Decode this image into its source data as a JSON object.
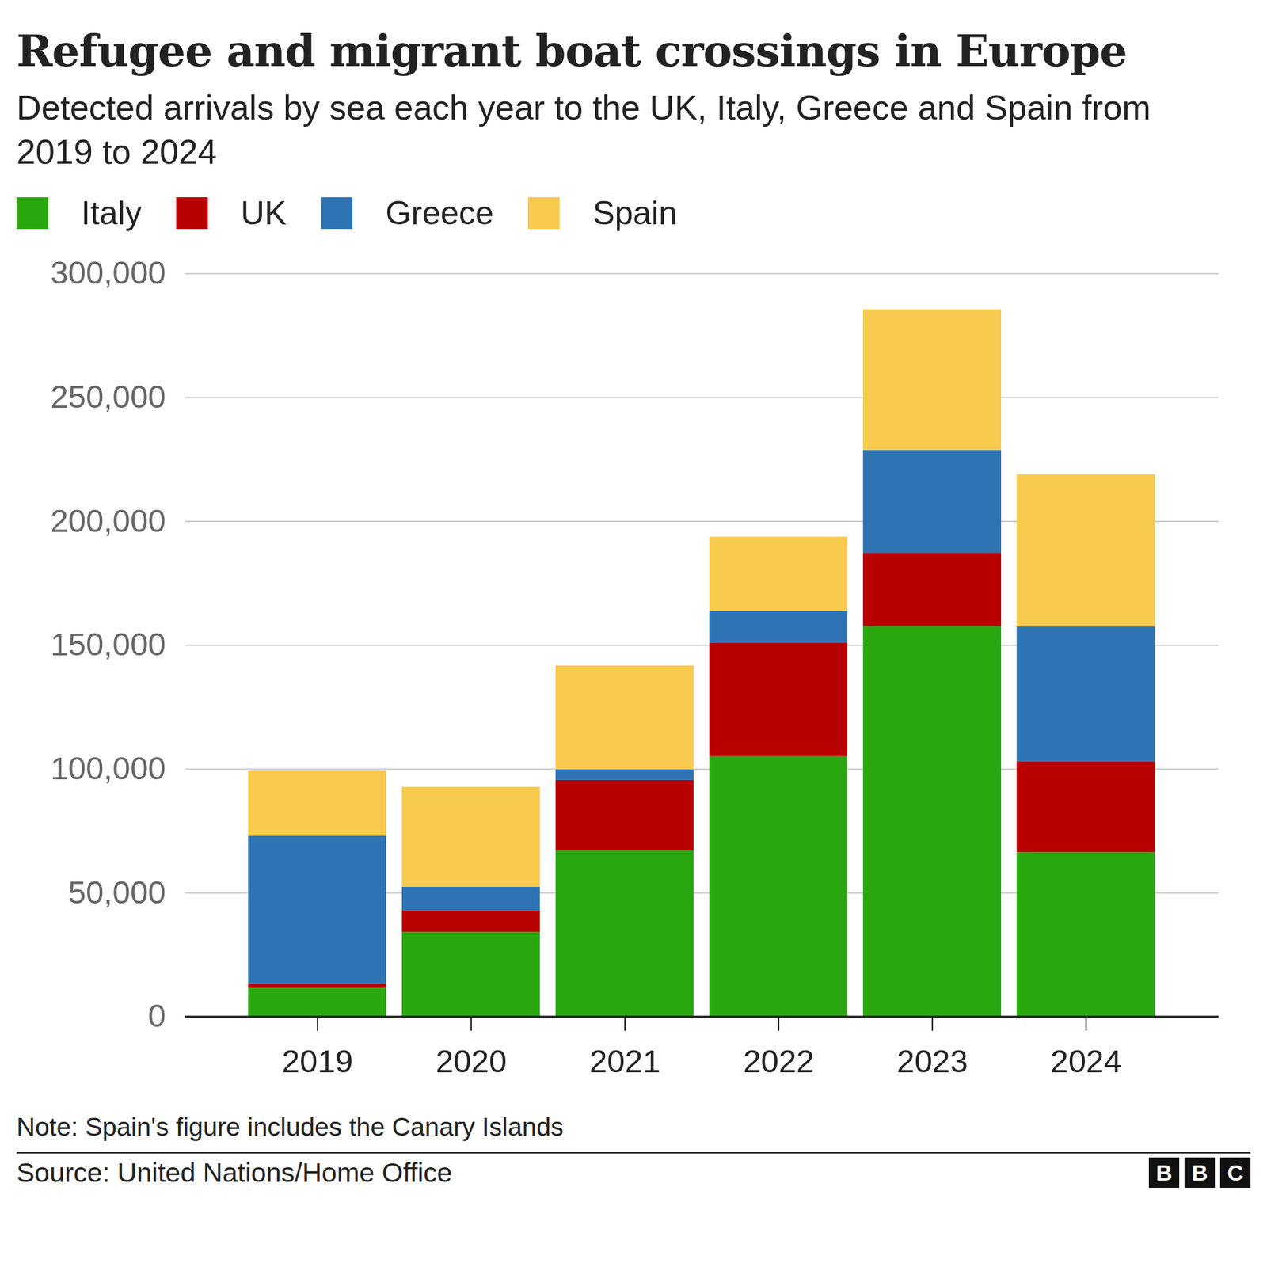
{
  "chart_data": {
    "type": "bar",
    "title": "Refugee and migrant boat crossings in Europe",
    "subtitle": "Detected arrivals by sea each year to the UK, Italy, Greece and Spain from 2019 to 2024",
    "categories": [
      "2019",
      "2020",
      "2021",
      "2022",
      "2023",
      "2024"
    ],
    "series": [
      {
        "name": "Italy",
        "color": "#29a90f",
        "values": [
          11500,
          34200,
          67000,
          105100,
          157700,
          66300
        ]
      },
      {
        "name": "UK",
        "color": "#b80000",
        "values": [
          1800,
          8500,
          28500,
          45800,
          29400,
          36800
        ]
      },
      {
        "name": "Greece",
        "color": "#2e74b5",
        "values": [
          59700,
          9700,
          4300,
          12800,
          41600,
          54400
        ]
      },
      {
        "name": "Spain",
        "color": "#f8ca4d",
        "values": [
          26200,
          40300,
          41900,
          30000,
          56800,
          61400
        ]
      }
    ],
    "stacked": true,
    "ylim": [
      0,
      300000
    ],
    "yticks": [
      0,
      {
        "value": 50000,
        "label": "50,000"
      },
      {
        "value": 100000,
        "label": "100,000"
      },
      {
        "value": 150000,
        "label": "150,000"
      },
      {
        "value": 200000,
        "label": "200,000"
      },
      {
        "value": 250000,
        "label": "250,000"
      },
      {
        "value": 300000,
        "label": "300,000"
      }
    ],
    "grid": true,
    "legend": "top-left",
    "note": "Note: Spain's figure includes the Canary Islands",
    "source": "Source: United Nations/Home Office",
    "logo": "BBC"
  }
}
